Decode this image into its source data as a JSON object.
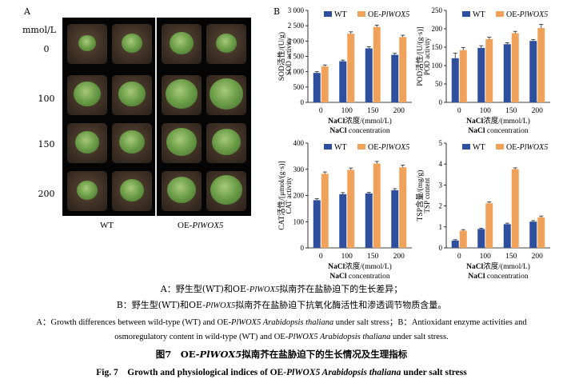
{
  "panel_a": {
    "letter": "A",
    "unit_label": "mmol/L",
    "rows": [
      "0",
      "100",
      "150",
      "200"
    ],
    "col_wt": "WT",
    "col_oe_prefix": "OE-",
    "col_oe_gene": "PlWOX5"
  },
  "panel_b": {
    "letter": "B"
  },
  "colors": {
    "wt": "#2e4f9e",
    "oe": "#f0a15a"
  },
  "chart_data": [
    {
      "id": "sod",
      "type": "bar",
      "ylabel_cn": "SOD活性/(U/g)",
      "ylabel_en": "SOD activity",
      "xlabel_cn_prefix": "NaCl",
      "xlabel_cn": "浓度/(mmol/L)",
      "xlabel_en": "NaCl concentration",
      "categories": [
        "0",
        "100",
        "150",
        "200"
      ],
      "ylim": [
        0,
        3000
      ],
      "yticks": [
        "0",
        "500",
        "1 000",
        "1 500",
        "2 000",
        "2 500",
        "3 000"
      ],
      "series": [
        {
          "name": "WT",
          "values": [
            960,
            1340,
            1760,
            1550
          ],
          "err": [
            40,
            40,
            50,
            50
          ]
        },
        {
          "name_prefix": "OE-",
          "name_gene": "PlWOX5",
          "values": [
            1170,
            2240,
            2460,
            2130
          ],
          "err": [
            50,
            60,
            60,
            60
          ]
        }
      ]
    },
    {
      "id": "pod",
      "type": "bar",
      "ylabel_cn": "POD活性/[U/(g·s)]",
      "ylabel_en": "POD activity",
      "xlabel_cn_prefix": "NaCl",
      "xlabel_cn": "浓度/(mmol/L)",
      "xlabel_en": "NaCl concentration",
      "categories": [
        "0",
        "100",
        "150",
        "200"
      ],
      "ylim": [
        0,
        250
      ],
      "yticks": [
        "0",
        "50",
        "100",
        "150",
        "200",
        "250"
      ],
      "series": [
        {
          "name": "WT",
          "values": [
            120,
            148,
            158,
            167
          ],
          "err": [
            14,
            6,
            4,
            4
          ]
        },
        {
          "name_prefix": "OE-",
          "name_gene": "PlWOX5",
          "values": [
            142,
            172,
            188,
            202
          ],
          "err": [
            7,
            5,
            5,
            10
          ]
        }
      ]
    },
    {
      "id": "cat",
      "type": "bar",
      "ylabel_cn": "CAT活性/[μmol/(g·s)]",
      "ylabel_en": "CAT activity",
      "xlabel_cn_prefix": "NaCl",
      "xlabel_cn": "浓度/(mmol/L)",
      "xlabel_en": "NaCl concentration",
      "categories": [
        "0",
        "100",
        "150",
        "200"
      ],
      "ylim": [
        0,
        400
      ],
      "yticks": [
        "0",
        "100",
        "200",
        "300",
        "400"
      ],
      "series": [
        {
          "name": "WT",
          "values": [
            182,
            205,
            208,
            220
          ],
          "err": [
            6,
            6,
            4,
            6
          ]
        },
        {
          "name_prefix": "OE-",
          "name_gene": "PlWOX5",
          "values": [
            283,
            298,
            322,
            308
          ],
          "err": [
            7,
            7,
            8,
            8
          ]
        }
      ]
    },
    {
      "id": "tsp",
      "type": "bar",
      "ylabel_cn": "TSP含量/(mg/g)",
      "ylabel_en": "TSP content",
      "xlabel_cn_prefix": "NaCl",
      "xlabel_cn": "浓度/(mmol/L)",
      "xlabel_en": "NaCl concentration",
      "categories": [
        "0",
        "100",
        "150",
        "200"
      ],
      "ylim": [
        0,
        5
      ],
      "yticks": [
        "0",
        "1",
        "2",
        "3",
        "4",
        "5"
      ],
      "series": [
        {
          "name": "WT",
          "values": [
            0.35,
            0.9,
            1.13,
            1.25
          ],
          "err": [
            0.04,
            0.04,
            0.05,
            0.05
          ]
        },
        {
          "name_prefix": "OE-",
          "name_gene": "PlWOX5",
          "values": [
            0.82,
            2.13,
            3.76,
            1.46
          ],
          "err": [
            0.05,
            0.06,
            0.06,
            0.06
          ]
        }
      ]
    }
  ],
  "caption": {
    "line1_a": "A：野生型(WT)和OE-",
    "line1_gene": "PlWOX5",
    "line1_b": "拟南芥在盐胁迫下的生长差异；",
    "line2_a": "B：野生型(WT)和OE-",
    "line2_gene": "PlWOX5",
    "line2_b": "拟南芥在盐胁迫下抗氧化酶活性和渗透调节物质含量。",
    "line3_a": "A：Growth differences between wild-type (WT) and OE-",
    "line3_gene": "PlWOX5 Arabidopsis thaliana",
    "line3_b": " under salt stress；B：Antioxidant enzyme activities and",
    "line4_a": "osmoregulatory content in wild-type (WT) and OE-",
    "line4_gene": "PlWOX5 Arabidopsis thaliana",
    "line4_b": " under salt stress.",
    "fig_cn_a": "图7　OE-",
    "fig_cn_gene": "PlWOX5",
    "fig_cn_b": "拟南芥在盐胁迫下的生长情况及生理指标",
    "fig_en_a": "Fig. 7　Growth and physiological indices of OE-",
    "fig_en_gene": "PlWOX5 Arabidopsis thaliana",
    "fig_en_b": " under salt stress"
  }
}
